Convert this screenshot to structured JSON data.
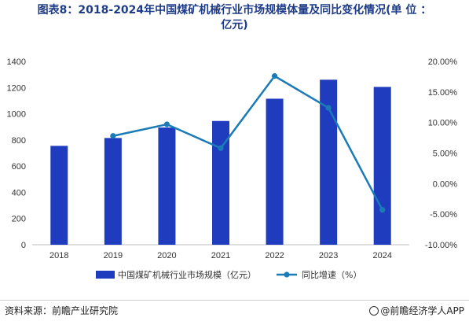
{
  "chart_data": {
    "type": "bar+line",
    "title": "图表8：2018-2024年中国煤矿机械行业市场规模体量及同比变化情况(单 位 ：亿元)",
    "title_lines": [
      "图表8：2018-2024年中国煤矿机械行业市场规模体量及同比变化情况(单 位 ：",
      "亿元)"
    ],
    "categories": [
      "2018",
      "2019",
      "2020",
      "2021",
      "2022",
      "2023",
      "2024"
    ],
    "series": [
      {
        "name": "中国煤矿机械行业市场规模（亿元）",
        "type": "bar",
        "axis": "left",
        "values": [
          755,
          815,
          895,
          945,
          1115,
          1260,
          1205
        ],
        "color": "#1f3cbf"
      },
      {
        "name": "同比增速（%）",
        "type": "line",
        "axis": "right",
        "values": [
          null,
          7.8,
          9.7,
          5.8,
          17.6,
          12.4,
          -4.3
        ],
        "color": "#1b7bb6"
      }
    ],
    "y_left": {
      "min": 0,
      "max": 1400,
      "ticks": [
        "0",
        "200",
        "400",
        "600",
        "800",
        "1000",
        "1200",
        "1400"
      ]
    },
    "y_right": {
      "min": -10,
      "max": 20,
      "ticks": [
        "-10.00%",
        "-5.00%",
        "0.00%",
        "5.00%",
        "10.00%",
        "15.00%",
        "20.00%"
      ]
    },
    "legend_position": "bottom",
    "grid": false
  },
  "footer": {
    "source": "资料来源：前瞻产业研究院",
    "brand": "@前瞻经济学人APP"
  }
}
